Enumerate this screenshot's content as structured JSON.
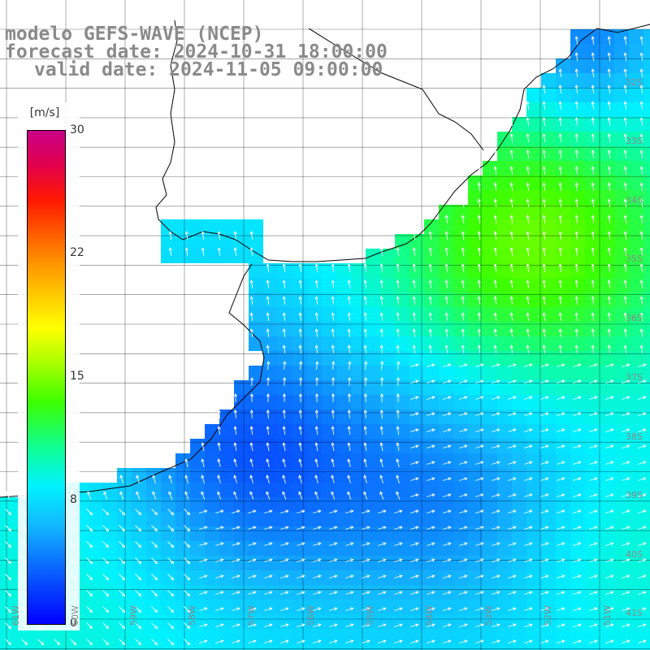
{
  "header": {
    "title_line1": "modelo GEFS-WAVE (NCEP)",
    "title_line2": "forecast date: 2024-10-31 18:00:00",
    "title_line3": "valid date: 2024-11-05 09:00:00"
  },
  "colorbar": {
    "unit": "[m/s]",
    "ticks": [
      "30",
      "22",
      "15",
      "8",
      "0"
    ],
    "range": [
      0,
      30
    ]
  },
  "map": {
    "lat_labels": [
      "32S",
      "33S",
      "34S",
      "35S",
      "36S",
      "37S",
      "38S",
      "39S",
      "40S",
      "41S"
    ],
    "lon_labels": [
      "61W",
      "60W",
      "59W",
      "58W",
      "57W",
      "56W",
      "55W",
      "54W",
      "53W",
      "52W",
      "51W"
    ],
    "colors": {
      "land": "#ffffff",
      "grid": "#000000",
      "coastline": "#000000",
      "wind_arrow": "#ffffff",
      "labels": "#8a8a8a"
    }
  }
}
